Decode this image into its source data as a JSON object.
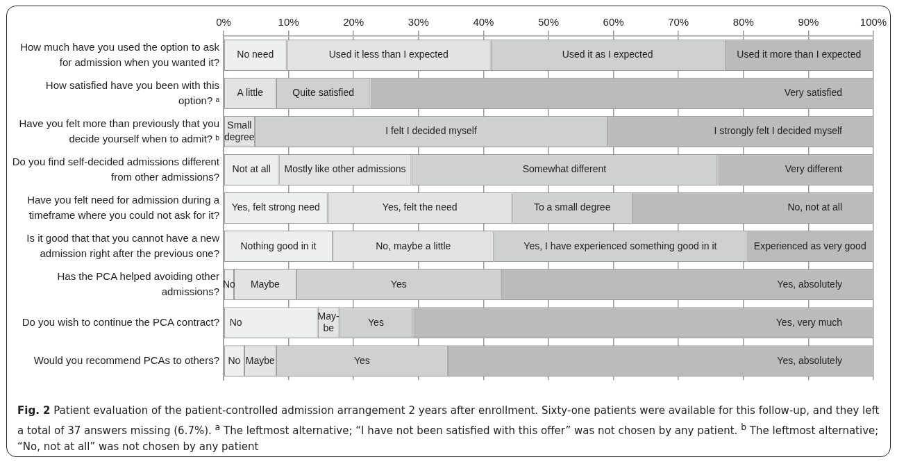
{
  "chart_data": {
    "type": "bar",
    "orientation": "horizontal",
    "stacked": true,
    "grid": "x",
    "categories": [
      "How much have you used the option to ask for admission when you wanted it?",
      "How satisfied have you been with this option? ᵃ",
      "Have you felt more than previously that you decide yourself when to admit? ᵇ",
      "Do you find self-decided admissions different from other admissions?",
      "Have you felt need for admission during a timeframe where you could not ask for it?",
      "Is it good that that you cannot have a new admission right after the previous one?",
      "Has the PCA helped avoiding other admissions?",
      "Do you wish to continue the PCA contract?",
      "Would you recommend PCAs to others?"
    ],
    "series": [
      {
        "color": "#eef0ef",
        "values": [
          9.7,
          null,
          null,
          8.5,
          16.0,
          16.8,
          1.6,
          14.5,
          3.2
        ],
        "value_labels": [
          "No need",
          null,
          null,
          "Not at all",
          "Yes, felt strong need",
          "Nothing good in it",
          "No",
          "No",
          "No"
        ]
      },
      {
        "color": "#e3e3e3",
        "values": [
          31.4,
          8.1,
          4.8,
          20.4,
          28.4,
          24.8,
          9.6,
          3.3,
          4.9
        ],
        "value_labels": [
          "Used it less than I expected",
          "A little",
          "Small degree",
          "Mostly like other admissions",
          "Yes, felt the need",
          "No, maybe a little",
          "Maybe",
          "May-be",
          "Maybe"
        ]
      },
      {
        "color": "#cfd1d0",
        "values": [
          36.0,
          14.5,
          54.3,
          47.1,
          18.5,
          38.9,
          31.5,
          11.3,
          26.4
        ],
        "value_labels": [
          "Used it as I expected",
          "Quite satisfied",
          "I felt I decided myself",
          "Somewhat different",
          "To a small degree",
          "Yes, I have experienced something good in it",
          "Yes",
          "Yes",
          "Yes"
        ]
      },
      {
        "color": "#bbbbbb",
        "values": [
          22.9,
          77.4,
          40.9,
          24.0,
          37.1,
          19.5,
          57.3,
          70.9,
          65.5
        ],
        "value_labels": [
          "Used it more than I expected",
          "Very satisfied",
          "I strongly felt I decided myself",
          "Very different",
          "No, not at all",
          "Experienced as very good",
          "Yes, absolutely",
          "Yes, very much",
          "Yes, absolutely"
        ]
      }
    ],
    "xlim": [
      0,
      100
    ],
    "xticks": [
      {
        "value": 0,
        "label": "0%"
      },
      {
        "value": 10,
        "label": "10%"
      },
      {
        "value": 20,
        "label": "20%"
      },
      {
        "value": 30,
        "label": "30%"
      },
      {
        "value": 40,
        "label": "40%"
      },
      {
        "value": 50,
        "label": "50%"
      },
      {
        "value": 60,
        "label": "60%"
      },
      {
        "value": 70,
        "label": "70%"
      },
      {
        "value": 80,
        "label": "80%"
      },
      {
        "value": 90,
        "label": "90%"
      },
      {
        "value": 100,
        "label": "100%"
      }
    ],
    "annotations": [
      "Fig. 2",
      "Patient evaluation of the patient-controlled admission arrangement 2 years after enrollment. Sixty-one patients were available for this follow-up, and they left a total of 37 answers missing (6.7%). $^{a}$ The leftmost alternative; “I have not been satisfied with this offer” was not chosen by any patient. $^{b}$ The leftmost alternative; “No, not at all” was not chosen by any patient"
    ]
  }
}
